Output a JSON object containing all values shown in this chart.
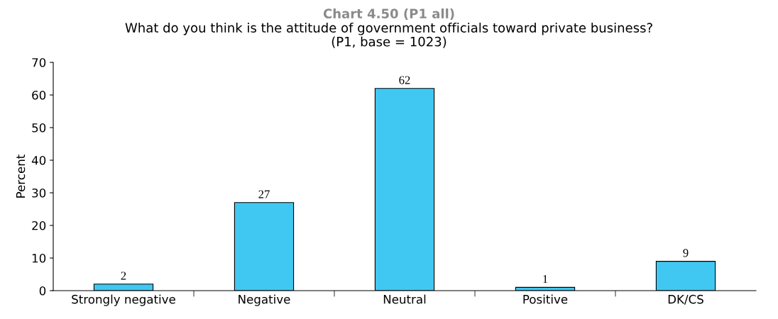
{
  "chart_data": {
    "type": "bar",
    "title": "Chart 4.50 (P1 all)",
    "subtitle": "What do you think is the attitude of government officials toward private business?\n(P1, base = 1023)",
    "ylabel": "Percent",
    "categories": [
      "Strongly negative",
      "Negative",
      "Neutral",
      "Positive",
      "DK/CS"
    ],
    "values": [
      2,
      27,
      62,
      1,
      9
    ],
    "color": "#40c8f2",
    "ylim": [
      0,
      70
    ],
    "yticks": [
      0,
      10,
      20,
      30,
      40,
      50,
      60,
      70
    ],
    "data_labels": true
  }
}
